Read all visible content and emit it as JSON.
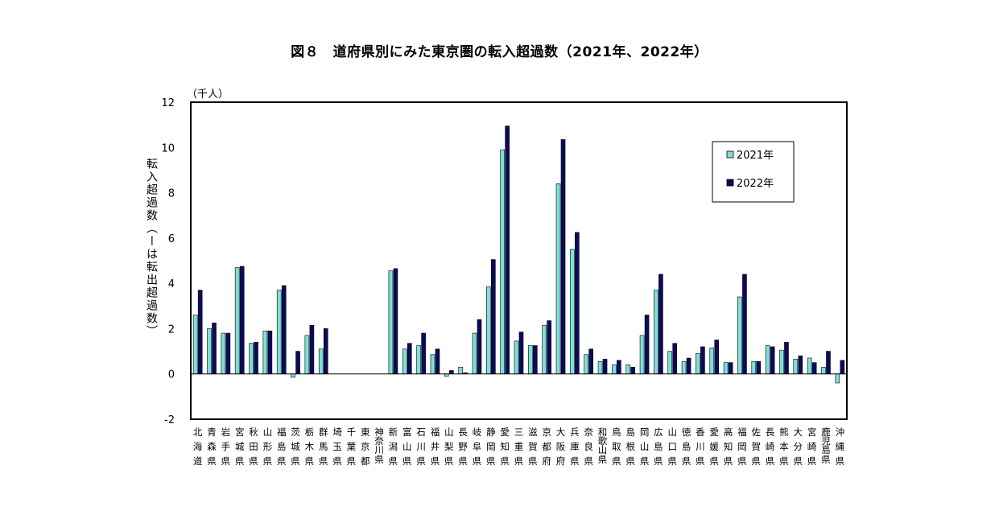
{
  "title": "図８　道府県別にみた東京圏の転入超過数（2021年、2022年）",
  "unit": "（千人）",
  "chart_data": {
    "type": "bar",
    "title": "図８　道府県別にみた東京圏の転入超過数（2021年、2022年）",
    "ylabel": "転入超過数（ーは転出超過数）",
    "unit": "（千人）",
    "ylim": [
      -2,
      12
    ],
    "yticks": [
      -2,
      0,
      2,
      4,
      6,
      8,
      10,
      12
    ],
    "grid": false,
    "legend_position": "top-right",
    "categories": [
      "北海道",
      "青森県",
      "岩手県",
      "宮城県",
      "秋田県",
      "山形県",
      "福島県",
      "茨城県",
      "栃木県",
      "群馬県",
      "埼玉県",
      "千葉県",
      "東京都",
      "神奈川県",
      "新潟県",
      "富山県",
      "石川県",
      "福井県",
      "山梨県",
      "長野県",
      "岐阜県",
      "静岡県",
      "愛知県",
      "三重県",
      "滋賀県",
      "京都府",
      "大阪府",
      "兵庫県",
      "奈良県",
      "和歌山県",
      "鳥取県",
      "島根県",
      "岡山県",
      "広島県",
      "山口県",
      "徳島県",
      "香川県",
      "愛媛県",
      "高知県",
      "福岡県",
      "佐賀県",
      "長崎県",
      "熊本県",
      "大分県",
      "宮崎県",
      "鹿児島県",
      "沖縄県"
    ],
    "series": [
      {
        "name": "2021年",
        "color": "#7fe0d8",
        "values": [
          2.6,
          2.0,
          1.8,
          4.7,
          1.35,
          1.9,
          3.7,
          -0.15,
          1.7,
          1.1,
          null,
          null,
          null,
          null,
          4.55,
          1.1,
          1.25,
          0.85,
          -0.1,
          0.3,
          1.8,
          3.85,
          9.9,
          1.45,
          1.25,
          2.15,
          8.4,
          5.5,
          0.85,
          0.55,
          0.4,
          0.4,
          1.7,
          3.7,
          1.0,
          0.55,
          0.9,
          1.15,
          0.5,
          3.4,
          0.55,
          1.25,
          1.05,
          0.65,
          0.7,
          0.3,
          -0.4
        ]
      },
      {
        "name": "2022年",
        "color": "#0b0b5c",
        "values": [
          3.7,
          2.25,
          1.8,
          4.75,
          1.4,
          1.9,
          3.9,
          1.0,
          2.15,
          2.0,
          null,
          null,
          null,
          null,
          4.65,
          1.35,
          1.8,
          1.1,
          0.15,
          0.05,
          2.4,
          5.05,
          10.95,
          1.85,
          1.25,
          2.35,
          10.35,
          6.25,
          1.1,
          0.65,
          0.6,
          0.3,
          2.6,
          4.4,
          1.35,
          0.7,
          1.2,
          1.5,
          0.5,
          4.4,
          0.55,
          1.2,
          1.4,
          0.8,
          0.5,
          1.0,
          0.6
        ]
      }
    ]
  }
}
